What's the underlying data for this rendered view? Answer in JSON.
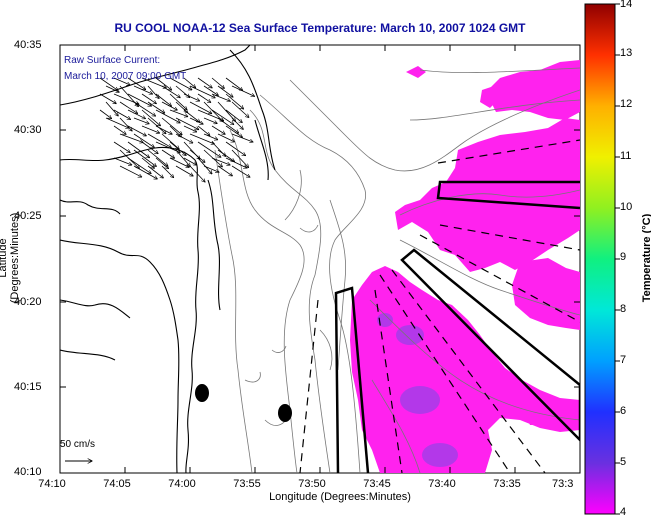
{
  "title": "RU COOL  NOAA-12  Sea Surface Temperature:  March 10, 2007 1024 GMT",
  "axes": {
    "ylabel": "Latitude (Degrees:Minutes)",
    "xlabel": "Longitude (Degrees:Minutes)",
    "yticks": [
      "40:35",
      "40:30",
      "40:25",
      "40:20",
      "40:15",
      "40:10"
    ],
    "xticks": [
      "74:10",
      "74:05",
      "74:00",
      "73:55",
      "73:50",
      "73:45",
      "73:40",
      "73:35",
      "73:3"
    ]
  },
  "legend": {
    "line1": "Raw Surface Current:",
    "line2": "March 10, 2007 09:00 GMT"
  },
  "scale_label": "50 cm/s",
  "colorbar": {
    "label": "Temperature (°C)",
    "ticks": [
      "14",
      "13",
      "12",
      "11",
      "10",
      "9",
      "8",
      "7",
      "6",
      "5",
      "4"
    ],
    "min": 4,
    "max": 14,
    "colors": [
      "#ff00ff",
      "#6a30e0",
      "#2030ff",
      "#00a0ff",
      "#00e8d8",
      "#10f080",
      "#90f020",
      "#f0f000",
      "#ffb000",
      "#ff3000",
      "#900000"
    ]
  },
  "sst_color": "#ff22ee",
  "coast_color": "#000000"
}
